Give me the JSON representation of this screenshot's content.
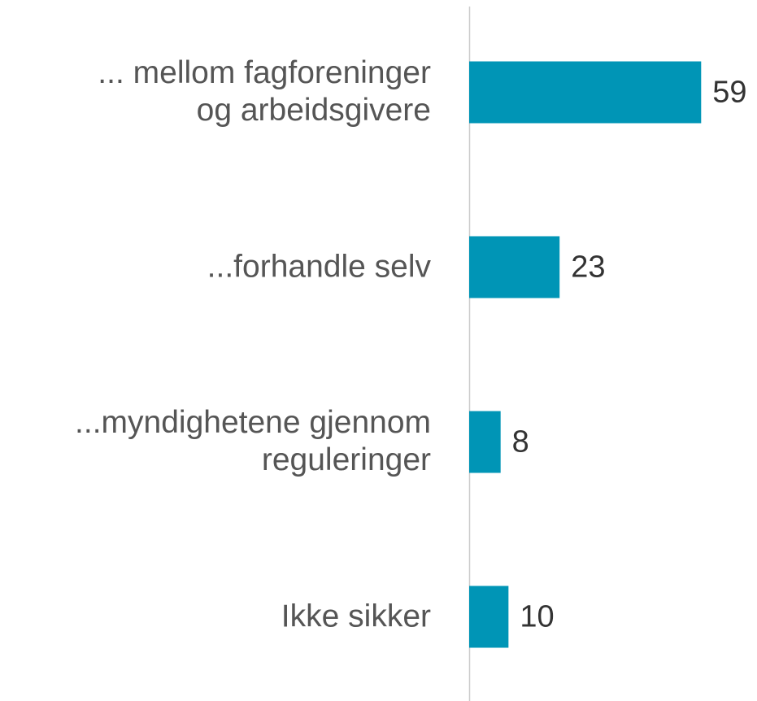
{
  "chart_data": {
    "type": "bar",
    "orientation": "horizontal",
    "categories": [
      "... mellom fagforeninger\nog arbeidsgivere",
      "...forhandle selv",
      "...myndighetene gjennom\nreguleringer",
      "Ikke sikker"
    ],
    "values": [
      59,
      23,
      8,
      10
    ],
    "color": "#0095b6",
    "xlim": [
      0,
      73
    ]
  }
}
